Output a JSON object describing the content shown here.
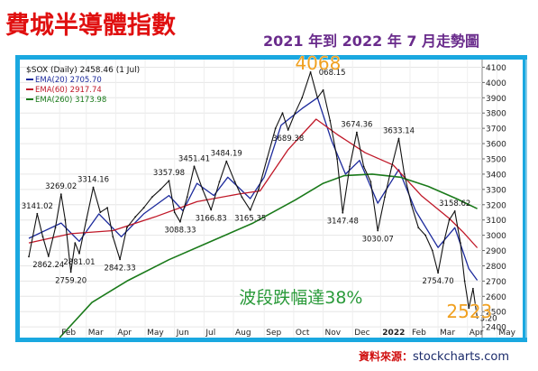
{
  "title": "費城半導體指數",
  "subtitle": "2021 年到 2022 年 7 月走勢圖",
  "source_label": "資料來源：",
  "source_domain": "stockcharts.com",
  "chart_data": {
    "type": "line",
    "header": "$SOX (Daily) 2458.46 (1 Jul)",
    "ylim": [
      2330,
      4150
    ],
    "yticks": [
      2400,
      2500,
      2600,
      2700,
      2800,
      2900,
      3000,
      3100,
      3200,
      3300,
      3400,
      3500,
      3600,
      3700,
      3800,
      3900,
      4000,
      4100
    ],
    "month_labels": [
      {
        "label": "Feb",
        "x": 22
      },
      {
        "label": "Mar",
        "x": 41
      },
      {
        "label": "Apr",
        "x": 62
      },
      {
        "label": "May",
        "x": 83
      },
      {
        "label": "Jun",
        "x": 104
      },
      {
        "label": "Jul",
        "x": 125
      },
      {
        "label": "Aug",
        "x": 146
      },
      {
        "label": "Sep",
        "x": 168
      },
      {
        "label": "Oct",
        "x": 189
      },
      {
        "label": "Nov",
        "x": 210
      },
      {
        "label": "Dec",
        "x": 231
      },
      {
        "label": "2022",
        "x": 251
      },
      {
        "label": "Feb",
        "x": 272
      },
      {
        "label": "Mar",
        "x": 292
      },
      {
        "label": "Apr",
        "x": 313
      },
      {
        "label": "May",
        "x": 334
      },
      {
        "label": "Jun",
        "x": 355
      },
      {
        "label": "Jul",
        "x": 376
      }
    ],
    "price": [
      {
        "x": 0,
        "y": 2860
      },
      {
        "x": 6,
        "y": 3141
      },
      {
        "x": 10,
        "y": 2990
      },
      {
        "x": 14,
        "y": 2862
      },
      {
        "x": 19,
        "y": 3050
      },
      {
        "x": 23,
        "y": 3269
      },
      {
        "x": 26,
        "y": 3100
      },
      {
        "x": 30,
        "y": 2759
      },
      {
        "x": 33,
        "y": 2950
      },
      {
        "x": 36,
        "y": 2881
      },
      {
        "x": 41,
        "y": 3100
      },
      {
        "x": 46,
        "y": 3314
      },
      {
        "x": 51,
        "y": 3150
      },
      {
        "x": 56,
        "y": 3180
      },
      {
        "x": 60,
        "y": 2990
      },
      {
        "x": 65,
        "y": 2842
      },
      {
        "x": 70,
        "y": 3050
      },
      {
        "x": 76,
        "y": 3120
      },
      {
        "x": 82,
        "y": 3180
      },
      {
        "x": 88,
        "y": 3250
      },
      {
        "x": 94,
        "y": 3300
      },
      {
        "x": 100,
        "y": 3357
      },
      {
        "x": 104,
        "y": 3150
      },
      {
        "x": 108,
        "y": 3088
      },
      {
        "x": 113,
        "y": 3250
      },
      {
        "x": 118,
        "y": 3451
      },
      {
        "x": 124,
        "y": 3300
      },
      {
        "x": 130,
        "y": 3166
      },
      {
        "x": 136,
        "y": 3350
      },
      {
        "x": 141,
        "y": 3484
      },
      {
        "x": 147,
        "y": 3350
      },
      {
        "x": 152,
        "y": 3250
      },
      {
        "x": 158,
        "y": 3165
      },
      {
        "x": 164,
        "y": 3300
      },
      {
        "x": 170,
        "y": 3500
      },
      {
        "x": 176,
        "y": 3700
      },
      {
        "x": 181,
        "y": 3800
      },
      {
        "x": 185,
        "y": 3689
      },
      {
        "x": 190,
        "y": 3800
      },
      {
        "x": 195,
        "y": 3900
      },
      {
        "x": 201,
        "y": 4068
      },
      {
        "x": 206,
        "y": 3900
      },
      {
        "x": 210,
        "y": 3950
      },
      {
        "x": 215,
        "y": 3750
      },
      {
        "x": 220,
        "y": 3500
      },
      {
        "x": 224,
        "y": 3147
      },
      {
        "x": 229,
        "y": 3450
      },
      {
        "x": 234,
        "y": 3674
      },
      {
        "x": 239,
        "y": 3450
      },
      {
        "x": 244,
        "y": 3350
      },
      {
        "x": 249,
        "y": 3030
      },
      {
        "x": 254,
        "y": 3250
      },
      {
        "x": 259,
        "y": 3450
      },
      {
        "x": 264,
        "y": 3633
      },
      {
        "x": 268,
        "y": 3400
      },
      {
        "x": 273,
        "y": 3200
      },
      {
        "x": 278,
        "y": 3050
      },
      {
        "x": 283,
        "y": 3000
      },
      {
        "x": 288,
        "y": 2900
      },
      {
        "x": 292,
        "y": 2754
      },
      {
        "x": 296,
        "y": 2950
      },
      {
        "x": 300,
        "y": 3100
      },
      {
        "x": 304,
        "y": 3158
      },
      {
        "x": 308,
        "y": 2950
      },
      {
        "x": 311,
        "y": 2700
      },
      {
        "x": 314,
        "y": 2523
      },
      {
        "x": 317,
        "y": 2650
      },
      {
        "x": 320,
        "y": 2458
      }
    ],
    "ema_series": [
      {
        "legend": "EMA(20) 2705.70",
        "color": "#1c2a9c",
        "values": [
          {
            "x": 0,
            "y": 2980
          },
          {
            "x": 23,
            "y": 3080
          },
          {
            "x": 36,
            "y": 2960
          },
          {
            "x": 50,
            "y": 3140
          },
          {
            "x": 66,
            "y": 2990
          },
          {
            "x": 82,
            "y": 3140
          },
          {
            "x": 100,
            "y": 3260
          },
          {
            "x": 110,
            "y": 3160
          },
          {
            "x": 120,
            "y": 3340
          },
          {
            "x": 132,
            "y": 3260
          },
          {
            "x": 142,
            "y": 3380
          },
          {
            "x": 158,
            "y": 3240
          },
          {
            "x": 168,
            "y": 3380
          },
          {
            "x": 180,
            "y": 3720
          },
          {
            "x": 195,
            "y": 3830
          },
          {
            "x": 206,
            "y": 3900
          },
          {
            "x": 216,
            "y": 3620
          },
          {
            "x": 226,
            "y": 3400
          },
          {
            "x": 236,
            "y": 3490
          },
          {
            "x": 249,
            "y": 3210
          },
          {
            "x": 264,
            "y": 3430
          },
          {
            "x": 276,
            "y": 3160
          },
          {
            "x": 292,
            "y": 2920
          },
          {
            "x": 304,
            "y": 3050
          },
          {
            "x": 314,
            "y": 2780
          },
          {
            "x": 320,
            "y": 2705
          }
        ]
      },
      {
        "legend": "EMA(60) 2917.74",
        "color": "#c01828",
        "values": [
          {
            "x": 0,
            "y": 2950
          },
          {
            "x": 30,
            "y": 3010
          },
          {
            "x": 60,
            "y": 3030
          },
          {
            "x": 90,
            "y": 3120
          },
          {
            "x": 120,
            "y": 3220
          },
          {
            "x": 150,
            "y": 3270
          },
          {
            "x": 165,
            "y": 3290
          },
          {
            "x": 185,
            "y": 3560
          },
          {
            "x": 205,
            "y": 3760
          },
          {
            "x": 220,
            "y": 3660
          },
          {
            "x": 240,
            "y": 3540
          },
          {
            "x": 260,
            "y": 3460
          },
          {
            "x": 280,
            "y": 3260
          },
          {
            "x": 300,
            "y": 3110
          },
          {
            "x": 310,
            "y": 3020
          },
          {
            "x": 320,
            "y": 2918
          }
        ]
      },
      {
        "legend": "EMA(260) 3173.98",
        "color": "#1a7a1a",
        "values": [
          {
            "x": 22,
            "y": 2330
          },
          {
            "x": 45,
            "y": 2560
          },
          {
            "x": 70,
            "y": 2700
          },
          {
            "x": 100,
            "y": 2840
          },
          {
            "x": 130,
            "y": 2960
          },
          {
            "x": 160,
            "y": 3080
          },
          {
            "x": 190,
            "y": 3230
          },
          {
            "x": 210,
            "y": 3340
          },
          {
            "x": 225,
            "y": 3390
          },
          {
            "x": 245,
            "y": 3400
          },
          {
            "x": 265,
            "y": 3380
          },
          {
            "x": 285,
            "y": 3320
          },
          {
            "x": 305,
            "y": 3240
          },
          {
            "x": 320,
            "y": 3174
          }
        ]
      }
    ],
    "price_labels": [
      {
        "text": "3141.02",
        "x": 6,
        "y": 3141,
        "pos": "above"
      },
      {
        "text": "3269.02",
        "x": 23,
        "y": 3269,
        "pos": "above"
      },
      {
        "text": "2862.24",
        "x": 14,
        "y": 2862,
        "pos": "below"
      },
      {
        "text": "2759.20",
        "x": 30,
        "y": 2759,
        "pos": "below"
      },
      {
        "text": "2881.01",
        "x": 36,
        "y": 2881,
        "pos": "below"
      },
      {
        "text": "3314.16",
        "x": 46,
        "y": 3314,
        "pos": "above"
      },
      {
        "text": "2842.33",
        "x": 65,
        "y": 2842,
        "pos": "below"
      },
      {
        "text": "3357.98",
        "x": 100,
        "y": 3357,
        "pos": "above"
      },
      {
        "text": "3088.33",
        "x": 108,
        "y": 3088,
        "pos": "below"
      },
      {
        "text": "3451.41",
        "x": 118,
        "y": 3451,
        "pos": "above"
      },
      {
        "text": "3166.83",
        "x": 130,
        "y": 3166,
        "pos": "below"
      },
      {
        "text": "3484.19",
        "x": 141,
        "y": 3484,
        "pos": "above"
      },
      {
        "text": "3165.35",
        "x": 158,
        "y": 3165,
        "pos": "below"
      },
      {
        "text": "3689.38",
        "x": 185,
        "y": 3689,
        "pos": "below"
      },
      {
        "text": "068.15",
        "x": 205,
        "y": 4068,
        "pos": "right"
      },
      {
        "text": "3674.36",
        "x": 234,
        "y": 3674,
        "pos": "above"
      },
      {
        "text": "3147.48",
        "x": 224,
        "y": 3147,
        "pos": "below"
      },
      {
        "text": "3633.14",
        "x": 264,
        "y": 3633,
        "pos": "above"
      },
      {
        "text": "3030.07",
        "x": 249,
        "y": 3030,
        "pos": "below"
      },
      {
        "text": "3158.62",
        "x": 304,
        "y": 3158,
        "pos": "above"
      },
      {
        "text": "2754.70",
        "x": 292,
        "y": 2754,
        "pos": "below"
      },
      {
        "text": "3.20",
        "x": 320,
        "y": 2458,
        "pos": "right"
      }
    ],
    "annotations": [
      {
        "text": "4068",
        "x": 190,
        "y": 4085,
        "color": "#f0a020",
        "size": 20
      },
      {
        "text": "2523",
        "x": 298,
        "y": 2460,
        "color": "#f0a020",
        "size": 20
      },
      {
        "text": "波段跌幅達38%",
        "x": 150,
        "y": 2555,
        "color": "#2a9a3a",
        "size": 19
      }
    ]
  }
}
